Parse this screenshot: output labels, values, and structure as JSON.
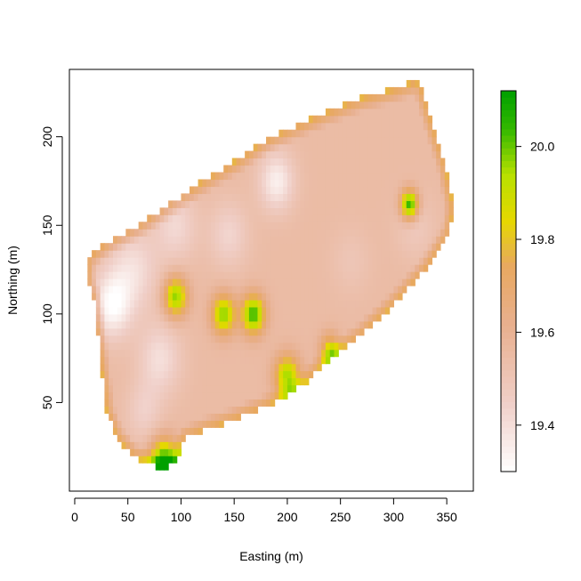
{
  "chart_data": {
    "type": "heatmap",
    "title": "",
    "xlabel": "Easting (m)",
    "ylabel": "Northing (m)",
    "xlim": [
      -5,
      375
    ],
    "ylim": [
      0,
      238
    ],
    "x_ticks": [
      0,
      50,
      100,
      150,
      200,
      250,
      300,
      350
    ],
    "y_ticks": [
      50,
      100,
      150,
      200
    ],
    "x_tick_labels": [
      "0",
      "50",
      "100",
      "150",
      "200",
      "250",
      "300",
      "350"
    ],
    "y_tick_labels": [
      "50",
      "100",
      "150",
      "200"
    ],
    "colorbar": {
      "range": [
        19.3,
        20.12
      ],
      "ticks": [
        19.4,
        19.6,
        19.8,
        20.0
      ],
      "tick_labels": [
        "19.4",
        "19.6",
        "19.8",
        "20.0"
      ],
      "colors": [
        {
          "stop": 0.0,
          "color": "#ffffff"
        },
        {
          "stop": 0.18,
          "color": "#f0cfc8"
        },
        {
          "stop": 0.38,
          "color": "#e8b090"
        },
        {
          "stop": 0.54,
          "color": "#e8a860"
        },
        {
          "stop": 0.66,
          "color": "#e6d800"
        },
        {
          "stop": 0.78,
          "color": "#b8e000"
        },
        {
          "stop": 0.9,
          "color": "#33b800"
        },
        {
          "stop": 1.0,
          "color": "#00a000"
        }
      ]
    },
    "field_boundary": [
      [
        12,
        132
      ],
      [
        30,
        140
      ],
      [
        60,
        150
      ],
      [
        90,
        162
      ],
      [
        120,
        175
      ],
      [
        150,
        186
      ],
      [
        180,
        198
      ],
      [
        210,
        207
      ],
      [
        240,
        215
      ],
      [
        270,
        222
      ],
      [
        300,
        227
      ],
      [
        318,
        231
      ],
      [
        325,
        230
      ],
      [
        330,
        220
      ],
      [
        340,
        200
      ],
      [
        348,
        185
      ],
      [
        356,
        160
      ],
      [
        352,
        145
      ],
      [
        330,
        125
      ],
      [
        300,
        105
      ],
      [
        270,
        88
      ],
      [
        240,
        75
      ],
      [
        215,
        60
      ],
      [
        190,
        50
      ],
      [
        170,
        45
      ],
      [
        150,
        40
      ],
      [
        125,
        35
      ],
      [
        105,
        30
      ],
      [
        95,
        18
      ],
      [
        85,
        12
      ],
      [
        75,
        14
      ],
      [
        55,
        20
      ],
      [
        40,
        30
      ],
      [
        30,
        45
      ],
      [
        25,
        70
      ],
      [
        22,
        90
      ],
      [
        18,
        110
      ],
      [
        12,
        118
      ]
    ],
    "base_value": 19.55,
    "features": [
      {
        "x": 35,
        "y": 105,
        "r": 20,
        "value": 19.32
      },
      {
        "x": 55,
        "y": 125,
        "r": 25,
        "value": 19.4
      },
      {
        "x": 95,
        "y": 150,
        "r": 22,
        "value": 19.42
      },
      {
        "x": 145,
        "y": 145,
        "r": 20,
        "value": 19.43
      },
      {
        "x": 190,
        "y": 175,
        "r": 18,
        "value": 19.35
      },
      {
        "x": 80,
        "y": 75,
        "r": 22,
        "value": 19.4
      },
      {
        "x": 65,
        "y": 45,
        "r": 18,
        "value": 19.45
      },
      {
        "x": 260,
        "y": 130,
        "r": 20,
        "value": 19.5
      },
      {
        "x": 320,
        "y": 150,
        "r": 20,
        "value": 19.48
      },
      {
        "x": 95,
        "y": 110,
        "r": 12,
        "value": 19.98
      },
      {
        "x": 140,
        "y": 100,
        "r": 12,
        "value": 19.98
      },
      {
        "x": 168,
        "y": 100,
        "r": 12,
        "value": 20.04
      },
      {
        "x": 200,
        "y": 65,
        "r": 13,
        "value": 19.96
      },
      {
        "x": 240,
        "y": 80,
        "r": 10,
        "value": 19.85
      },
      {
        "x": 315,
        "y": 162,
        "r": 9,
        "value": 20.08
      },
      {
        "x": 84,
        "y": 16,
        "r": 14,
        "value": 20.12
      }
    ]
  }
}
